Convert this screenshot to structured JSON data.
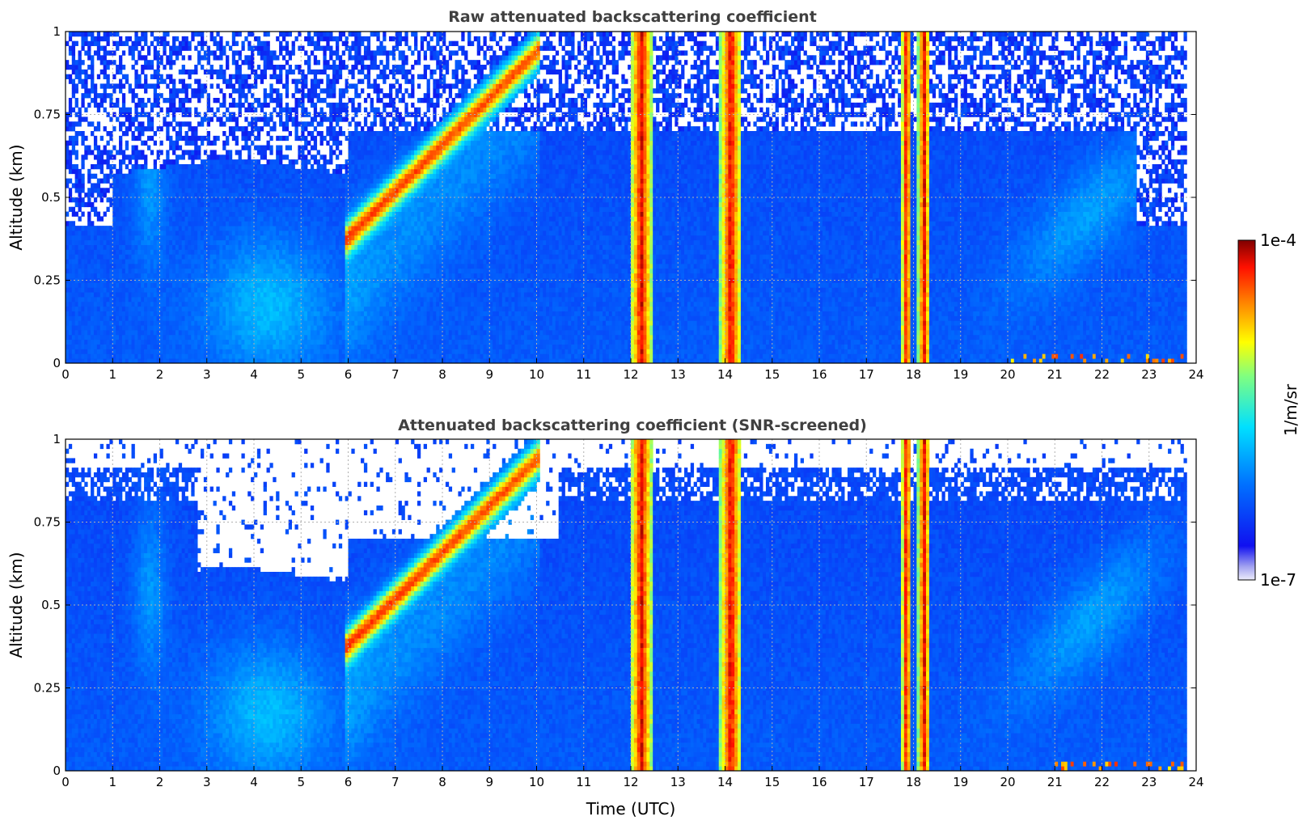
{
  "chart_data": [
    {
      "type": "heatmap",
      "title": "Raw attenuated backscattering coefficient",
      "xlabel": "",
      "ylabel": "Altitude (km)",
      "xlim": [
        0,
        24
      ],
      "ylim": [
        0,
        1
      ],
      "x_ticks": [
        "0",
        "1",
        "2",
        "3",
        "4",
        "5",
        "6",
        "7",
        "8",
        "9",
        "10",
        "11",
        "12",
        "13",
        "14",
        "15",
        "16",
        "17",
        "18",
        "19",
        "20",
        "21",
        "22",
        "23",
        "24"
      ],
      "y_ticks": [
        "0",
        "0.25",
        "0.5",
        "0.75",
        "1"
      ],
      "grid": true,
      "screened": false
    },
    {
      "type": "heatmap",
      "title": "Attenuated backscattering coefficient (SNR-screened)",
      "xlabel": "Time (UTC)",
      "ylabel": "Altitude (km)",
      "xlim": [
        0,
        24
      ],
      "ylim": [
        0,
        1
      ],
      "x_ticks": [
        "0",
        "1",
        "2",
        "3",
        "4",
        "5",
        "6",
        "7",
        "8",
        "9",
        "10",
        "11",
        "12",
        "13",
        "14",
        "15",
        "16",
        "17",
        "18",
        "19",
        "20",
        "21",
        "22",
        "23",
        "24"
      ],
      "y_ticks": [
        "0",
        "0.25",
        "0.5",
        "0.75",
        "1"
      ],
      "grid": true,
      "screened": true
    }
  ],
  "colorbar": {
    "label": "1/m/sr",
    "max_label": "1e-4",
    "min_label": "1e-7",
    "scale": "log",
    "colormap": "jet",
    "colors": [
      "#e8e8f8",
      "#0000ff",
      "#00ffff",
      "#ffff00",
      "#ff0000",
      "#800000"
    ]
  },
  "features": {
    "data_end_hour": 23.8,
    "saturated_columns_hours": [
      [
        12.0,
        12.45
      ],
      [
        13.9,
        14.35
      ],
      [
        17.75,
        17.95
      ],
      [
        18.1,
        18.35
      ]
    ],
    "aerosol_plume_hours": [
      [
        6.0,
        10.0
      ]
    ]
  }
}
